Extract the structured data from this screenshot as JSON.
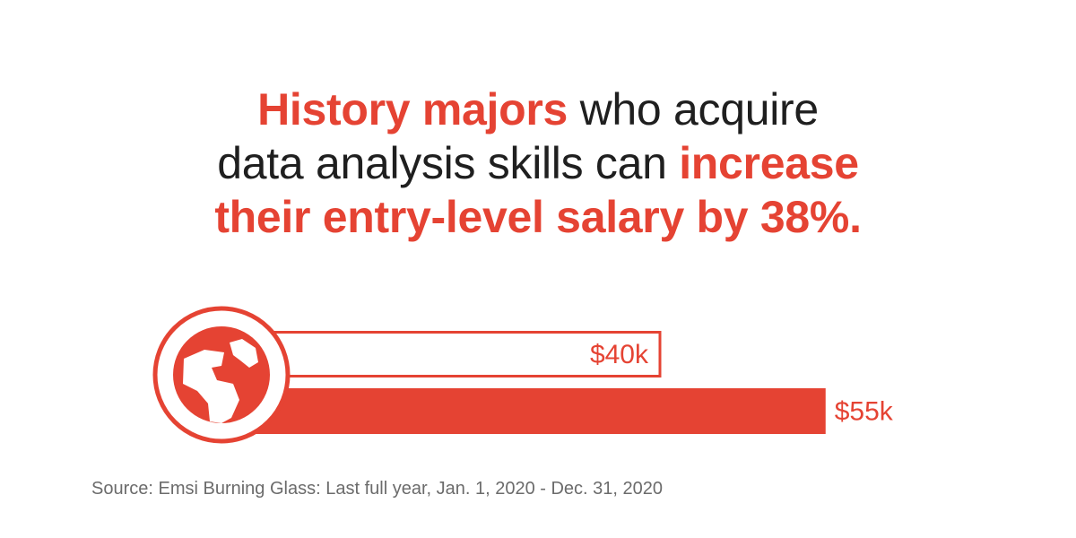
{
  "headline": {
    "line1_highlight": "History majors",
    "line1_rest": " who acquire",
    "line2_rest": "data analysis skills can ",
    "line2_highlight": "increase",
    "line3_highlight": "their entry-level salary by 38%."
  },
  "colors": {
    "accent": "#e54333",
    "text": "#1f1f1f",
    "muted": "#6b6b6b"
  },
  "icon": "globe-icon",
  "chart_data": {
    "type": "bar",
    "orientation": "horizontal",
    "categories": [
      "",
      ""
    ],
    "values": [
      40,
      55
    ],
    "value_labels": [
      "$40k",
      "$55k"
    ],
    "styles": [
      "outline",
      "filled"
    ],
    "unit": "$k",
    "title": "",
    "xlabel": "",
    "ylabel": "",
    "grid": false
  },
  "source": "Source: Emsi Burning Glass: Last full year, Jan. 1, 2020 - Dec. 31, 2020"
}
